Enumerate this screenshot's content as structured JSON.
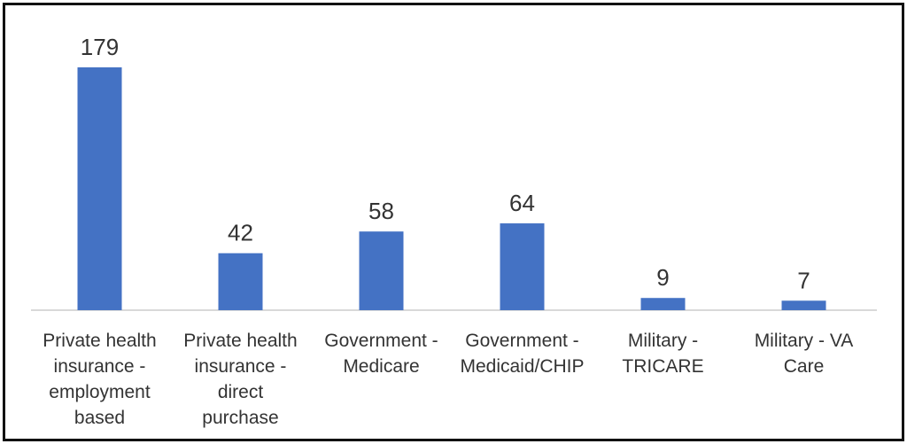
{
  "chart_data": {
    "type": "bar",
    "title": "",
    "xlabel": "",
    "ylabel": "",
    "grid": false,
    "legend": "none",
    "ylim": [
      0,
      179
    ],
    "bar_color": "#4472C4",
    "axis_color": "#D9D9D9",
    "categories": [
      [
        "Private health",
        "insurance -",
        "employment",
        "based"
      ],
      [
        "Private health",
        "insurance -",
        "direct",
        "purchase"
      ],
      [
        "Government -",
        "Medicare"
      ],
      [
        "Government -",
        "Medicaid/CHIP"
      ],
      [
        "Military -",
        "TRICARE"
      ],
      [
        "Military - VA",
        "Care"
      ]
    ],
    "values": [
      179,
      42,
      58,
      64,
      9,
      7
    ]
  }
}
